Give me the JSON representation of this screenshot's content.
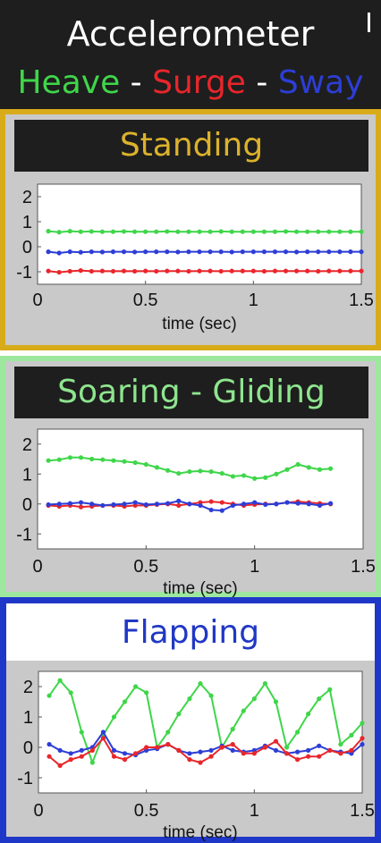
{
  "header": {
    "title": "Accelerometer",
    "legend": [
      {
        "text": "Heave",
        "color": "#3fd64a"
      },
      {
        "text": " - ",
        "color": "#ffffff"
      },
      {
        "text": "Surge",
        "color": "#e8262b"
      },
      {
        "text": " - ",
        "color": "#ffffff"
      },
      {
        "text": "Sway",
        "color": "#2d3ed6"
      }
    ]
  },
  "colors": {
    "heave": "#3fd64a",
    "surge": "#e8262b",
    "sway": "#2d3ed6"
  },
  "chart_data": [
    {
      "type": "line",
      "title": "Standing",
      "xlabel": "time (sec)",
      "ylabel": "",
      "xlim": [
        0,
        1.5
      ],
      "ylim": [
        -1.5,
        2.5
      ],
      "xticks": [
        "0",
        "0.5",
        "1",
        "1.5"
      ],
      "yticks": [
        "2",
        "1",
        "0",
        "-1"
      ],
      "xtick_values": [
        0,
        0.5,
        1,
        1.5
      ],
      "ytick_values": [
        2,
        1,
        0,
        -1
      ],
      "series": [
        {
          "key": "heave",
          "x": [
            0.05,
            0.1,
            0.15,
            0.2,
            0.25,
            0.3,
            0.35,
            0.4,
            0.45,
            0.5,
            0.55,
            0.6,
            0.65,
            0.7,
            0.75,
            0.8,
            0.85,
            0.9,
            0.95,
            1.0,
            1.05,
            1.1,
            1.15,
            1.2,
            1.25,
            1.3,
            1.35,
            1.4,
            1.45,
            1.5
          ],
          "values": [
            0.62,
            0.58,
            0.62,
            0.6,
            0.61,
            0.6,
            0.6,
            0.61,
            0.6,
            0.6,
            0.6,
            0.61,
            0.6,
            0.6,
            0.6,
            0.6,
            0.61,
            0.6,
            0.6,
            0.6,
            0.6,
            0.6,
            0.61,
            0.6,
            0.6,
            0.6,
            0.6,
            0.6,
            0.6,
            0.6
          ]
        },
        {
          "key": "sway",
          "x": [
            0.05,
            0.1,
            0.15,
            0.2,
            0.25,
            0.3,
            0.35,
            0.4,
            0.45,
            0.5,
            0.55,
            0.6,
            0.65,
            0.7,
            0.75,
            0.8,
            0.85,
            0.9,
            0.95,
            1.0,
            1.05,
            1.1,
            1.15,
            1.2,
            1.25,
            1.3,
            1.35,
            1.4,
            1.45,
            1.5
          ],
          "values": [
            -0.2,
            -0.25,
            -0.2,
            -0.22,
            -0.2,
            -0.21,
            -0.2,
            -0.2,
            -0.21,
            -0.2,
            -0.2,
            -0.2,
            -0.21,
            -0.2,
            -0.2,
            -0.2,
            -0.2,
            -0.21,
            -0.2,
            -0.2,
            -0.2,
            -0.2,
            -0.2,
            -0.21,
            -0.2,
            -0.2,
            -0.2,
            -0.2,
            -0.2,
            -0.2
          ]
        },
        {
          "key": "surge",
          "x": [
            0.05,
            0.1,
            0.15,
            0.2,
            0.25,
            0.3,
            0.35,
            0.4,
            0.45,
            0.5,
            0.55,
            0.6,
            0.65,
            0.7,
            0.75,
            0.8,
            0.85,
            0.9,
            0.95,
            1.0,
            1.05,
            1.1,
            1.15,
            1.2,
            1.25,
            1.3,
            1.35,
            1.4,
            1.45,
            1.5
          ],
          "values": [
            -0.97,
            -1.02,
            -0.98,
            -0.95,
            -0.98,
            -0.97,
            -0.98,
            -0.97,
            -0.98,
            -0.97,
            -0.98,
            -0.97,
            -0.97,
            -0.98,
            -0.97,
            -0.97,
            -0.98,
            -0.97,
            -0.97,
            -0.97,
            -0.98,
            -0.97,
            -0.97,
            -0.97,
            -0.97,
            -0.98,
            -0.97,
            -0.97,
            -0.97,
            -0.97
          ]
        }
      ]
    },
    {
      "type": "line",
      "title": "Soaring - Gliding",
      "xlabel": "time (sec)",
      "ylabel": "",
      "xlim": [
        0,
        1.5
      ],
      "ylim": [
        -1.5,
        2.5
      ],
      "xticks": [
        "0",
        "0.5",
        "1",
        "1.5"
      ],
      "yticks": [
        "2",
        "1",
        "0",
        "-1"
      ],
      "xtick_values": [
        0,
        0.5,
        1,
        1.5
      ],
      "ytick_values": [
        2,
        1,
        0,
        -1
      ],
      "series": [
        {
          "key": "heave",
          "x": [
            0.05,
            0.1,
            0.15,
            0.2,
            0.25,
            0.3,
            0.35,
            0.4,
            0.45,
            0.5,
            0.55,
            0.6,
            0.65,
            0.7,
            0.75,
            0.8,
            0.85,
            0.9,
            0.95,
            1.0,
            1.05,
            1.1,
            1.15,
            1.2,
            1.25,
            1.3,
            1.35
          ],
          "values": [
            1.45,
            1.48,
            1.55,
            1.55,
            1.5,
            1.48,
            1.45,
            1.42,
            1.38,
            1.32,
            1.22,
            1.12,
            1.02,
            1.08,
            1.1,
            1.08,
            1.02,
            0.92,
            0.95,
            0.85,
            0.88,
            1.0,
            1.15,
            1.32,
            1.22,
            1.15,
            1.18
          ]
        },
        {
          "key": "surge",
          "x": [
            0.05,
            0.1,
            0.15,
            0.2,
            0.25,
            0.3,
            0.35,
            0.4,
            0.45,
            0.5,
            0.55,
            0.6,
            0.65,
            0.7,
            0.75,
            0.8,
            0.85,
            0.9,
            0.95,
            1.0,
            1.05,
            1.1,
            1.15,
            1.2,
            1.25,
            1.3,
            1.35
          ],
          "values": [
            -0.05,
            -0.08,
            -0.05,
            -0.1,
            -0.08,
            -0.05,
            -0.05,
            -0.08,
            -0.05,
            -0.05,
            -0.02,
            0.0,
            -0.05,
            0.0,
            0.05,
            0.08,
            0.05,
            0.0,
            -0.05,
            -0.02,
            0.0,
            0.0,
            0.05,
            0.08,
            0.05,
            0.02,
            0.0
          ]
        },
        {
          "key": "sway",
          "x": [
            0.05,
            0.1,
            0.15,
            0.2,
            0.25,
            0.3,
            0.35,
            0.4,
            0.45,
            0.5,
            0.55,
            0.6,
            0.65,
            0.7,
            0.75,
            0.8,
            0.85,
            0.9,
            0.95,
            1.0,
            1.05,
            1.1,
            1.15,
            1.2,
            1.25,
            1.3,
            1.35
          ],
          "values": [
            -0.02,
            0.0,
            0.02,
            0.05,
            0.0,
            -0.05,
            -0.02,
            0.0,
            0.05,
            -0.02,
            0.0,
            0.02,
            0.1,
            0.0,
            -0.05,
            -0.2,
            -0.22,
            -0.05,
            0.0,
            0.05,
            -0.02,
            0.0,
            0.05,
            0.02,
            0.0,
            -0.05,
            0.02
          ]
        }
      ]
    },
    {
      "type": "line",
      "title": "Flapping",
      "xlabel": "time (sec)",
      "ylabel": "",
      "xlim": [
        0,
        1.5
      ],
      "ylim": [
        -1.5,
        2.5
      ],
      "xticks": [
        "0",
        "0.5",
        "1",
        "1.5"
      ],
      "yticks": [
        "2",
        "1",
        "0",
        "-1"
      ],
      "xtick_values": [
        0,
        0.5,
        1,
        1.5
      ],
      "ytick_values": [
        2,
        1,
        0,
        -1
      ],
      "series": [
        {
          "key": "heave",
          "x": [
            0.05,
            0.1,
            0.15,
            0.2,
            0.25,
            0.3,
            0.35,
            0.4,
            0.45,
            0.5,
            0.55,
            0.6,
            0.65,
            0.7,
            0.75,
            0.8,
            0.85,
            0.9,
            0.95,
            1.0,
            1.05,
            1.1,
            1.15,
            1.2,
            1.25,
            1.3,
            1.35,
            1.4,
            1.45,
            1.5
          ],
          "values": [
            1.7,
            2.2,
            1.8,
            0.5,
            -0.5,
            0.4,
            1.0,
            1.5,
            2.0,
            1.8,
            0.0,
            0.5,
            1.1,
            1.6,
            2.1,
            1.7,
            0.0,
            0.6,
            1.2,
            1.6,
            2.1,
            1.5,
            0.0,
            0.5,
            1.1,
            1.6,
            1.9,
            0.1,
            0.4,
            0.8
          ]
        },
        {
          "key": "sway",
          "x": [
            0.05,
            0.1,
            0.15,
            0.2,
            0.25,
            0.3,
            0.35,
            0.4,
            0.45,
            0.5,
            0.55,
            0.6,
            0.65,
            0.7,
            0.75,
            0.8,
            0.85,
            0.9,
            0.95,
            1.0,
            1.05,
            1.1,
            1.15,
            1.2,
            1.25,
            1.3,
            1.35,
            1.4,
            1.45,
            1.5
          ],
          "values": [
            0.1,
            -0.1,
            -0.2,
            -0.1,
            0.0,
            0.5,
            -0.1,
            -0.2,
            -0.25,
            -0.1,
            -0.05,
            0.1,
            -0.1,
            -0.2,
            -0.15,
            -0.1,
            0.05,
            -0.1,
            -0.15,
            -0.1,
            0.05,
            -0.1,
            -0.2,
            -0.15,
            -0.1,
            0.05,
            -0.1,
            -0.15,
            -0.2,
            0.1
          ]
        },
        {
          "key": "surge",
          "x": [
            0.05,
            0.1,
            0.15,
            0.2,
            0.25,
            0.3,
            0.35,
            0.4,
            0.45,
            0.5,
            0.55,
            0.6,
            0.65,
            0.7,
            0.75,
            0.8,
            0.85,
            0.9,
            0.95,
            1.0,
            1.05,
            1.1,
            1.15,
            1.2,
            1.25,
            1.3,
            1.35,
            1.4,
            1.45,
            1.5
          ],
          "values": [
            -0.3,
            -0.6,
            -0.4,
            -0.3,
            -0.1,
            0.3,
            -0.3,
            -0.4,
            -0.2,
            0.0,
            0.0,
            0.1,
            -0.1,
            -0.4,
            -0.5,
            -0.3,
            0.0,
            0.1,
            -0.2,
            -0.2,
            0.0,
            0.2,
            -0.2,
            -0.4,
            -0.3,
            -0.3,
            -0.1,
            -0.2,
            -0.1,
            0.3
          ]
        }
      ]
    }
  ]
}
